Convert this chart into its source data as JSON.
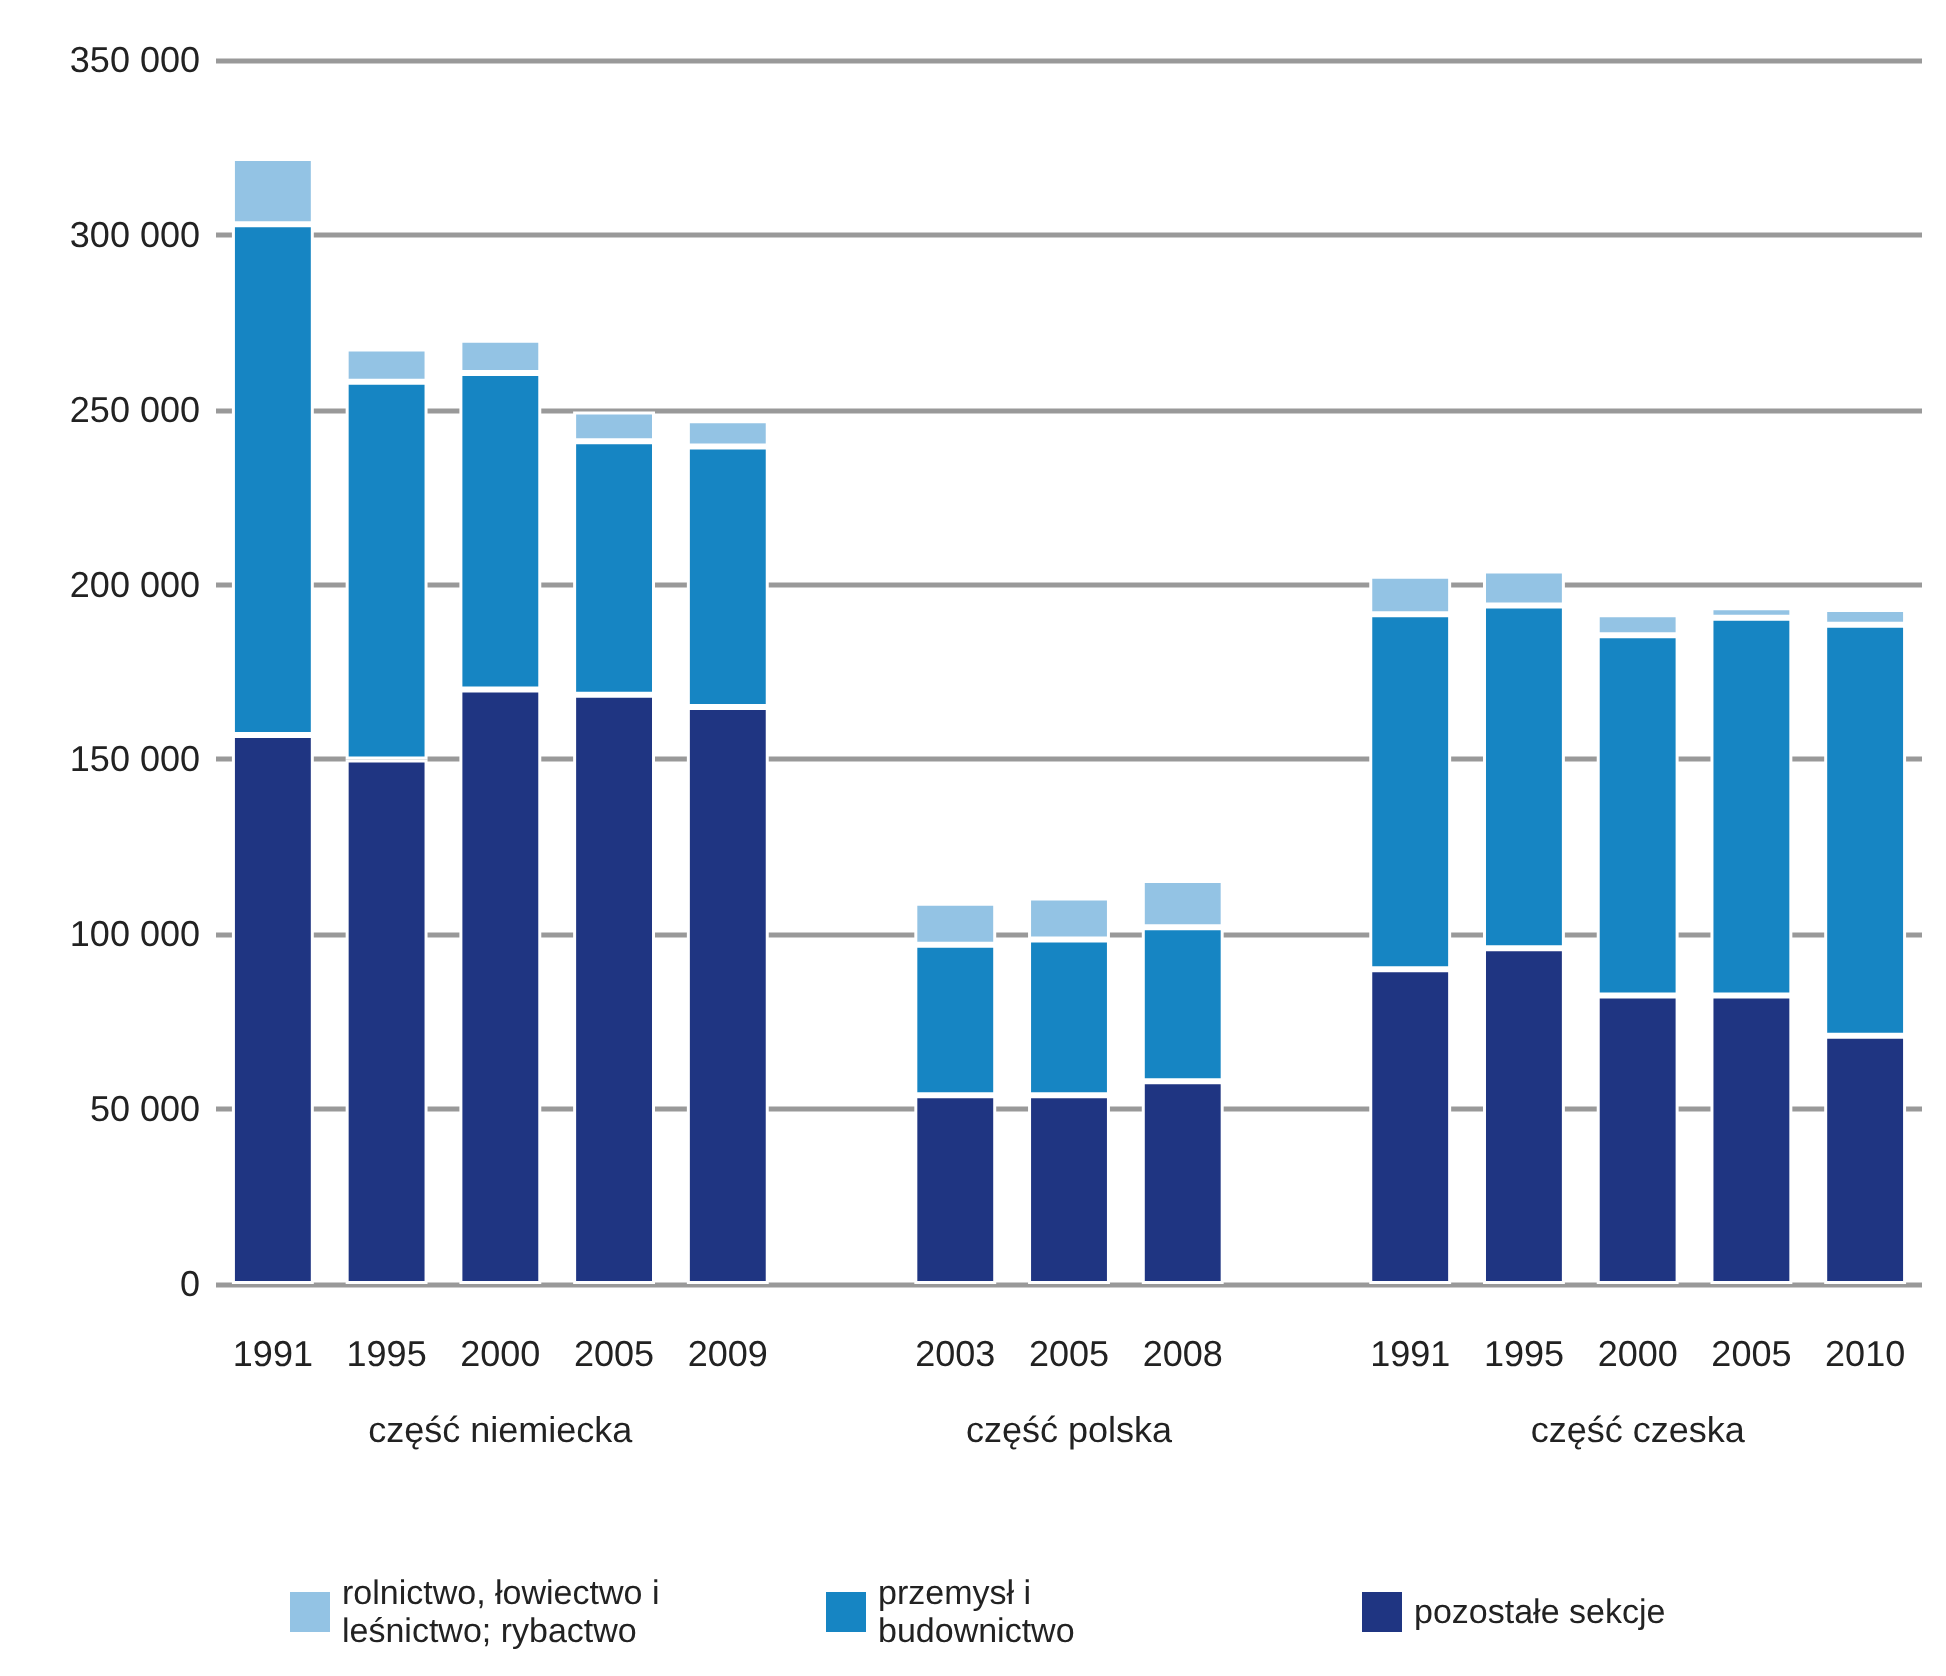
{
  "chart_data": {
    "type": "bar",
    "stacked": true,
    "categories": [
      "1991",
      "1995",
      "2000",
      "2005",
      "2009",
      null,
      "2003",
      "2005",
      "2008",
      null,
      "1991",
      "1995",
      "2000",
      "2005",
      "2010"
    ],
    "series": [
      {
        "name": "pozostałe sekcje",
        "color": "#1f3582",
        "values": [
          157000,
          150000,
          170000,
          168500,
          165000,
          null,
          54000,
          54000,
          58000,
          null,
          90000,
          96000,
          82500,
          82500,
          71000
        ]
      },
      {
        "name": "przemysł i budownictwo",
        "color": "#1685c3",
        "values": [
          146000,
          108000,
          90500,
          72500,
          74500,
          null,
          43000,
          44500,
          44000,
          null,
          101500,
          98000,
          103000,
          108000,
          117500
        ]
      },
      {
        "name": "rolnictwo, łowiectwo i leśnictwo; rybactwo",
        "color": "#93c3e4",
        "values": [
          19000,
          9500,
          9500,
          8500,
          7500,
          null,
          12000,
          12000,
          13500,
          null,
          11000,
          10000,
          6000,
          3000,
          4500
        ]
      }
    ],
    "annotations": [
      "część niemiecka",
      "część polska",
      "część czeska"
    ],
    "ylim": [
      0,
      350000
    ],
    "yticks": [
      0,
      50000,
      100000,
      150000,
      200000,
      250000,
      300000,
      350000
    ],
    "grid": "y",
    "legend": "bottom"
  }
}
